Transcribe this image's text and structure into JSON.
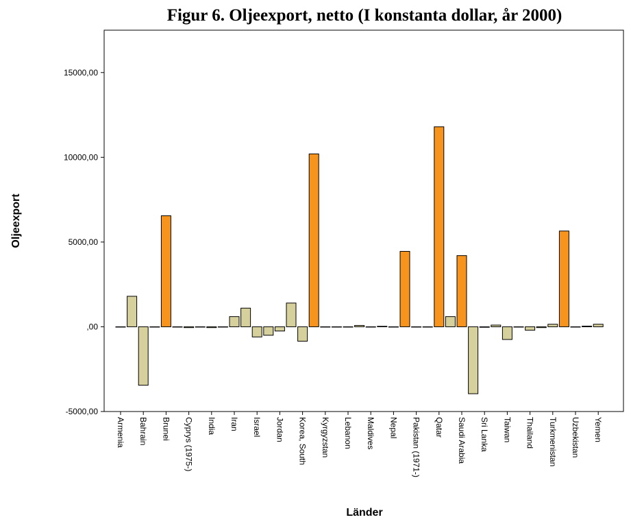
{
  "chart_data": {
    "type": "bar",
    "title": "Figur 6. Oljeexport, netto (I konstanta dollar, år 2000)",
    "x_label": "Länder",
    "y_label": "Oljeexport",
    "categories": [
      "Armenia",
      null,
      "Bahrain",
      null,
      "Brunei",
      null,
      "Cyprys (1975-)",
      null,
      "India",
      null,
      "Iran",
      null,
      "Israel",
      null,
      "Jordan",
      null,
      "Korea, South",
      null,
      "Kyrgyzstan",
      null,
      "Lebanon",
      null,
      "Maldives",
      null,
      "Nepal",
      null,
      "Pakistan (1971-)",
      null,
      "Qatar",
      null,
      "Saudi Arabia",
      null,
      "Sri Lanka",
      null,
      "Taiwan",
      null,
      "Thailand",
      null,
      "Turkmenistan",
      null,
      "Uzbekistan",
      null,
      "Yemen"
    ],
    "values": [
      0,
      1800,
      -3450,
      0,
      6550,
      0,
      -50,
      0,
      -50,
      0,
      600,
      1100,
      -600,
      -500,
      -250,
      1400,
      -850,
      10200,
      0,
      0,
      0,
      80,
      0,
      30,
      0,
      4450,
      0,
      0,
      11800,
      600,
      4200,
      -3950,
      -30,
      100,
      -750,
      0,
      -200,
      -50,
      150,
      5650,
      0,
      40,
      150
    ],
    "colors": [
      "#d6d09c",
      "#d6d09c",
      "#d6d09c",
      "#d6d09c",
      "#f7941d",
      "#d6d09c",
      "#d6d09c",
      "#d6d09c",
      "#d6d09c",
      "#d6d09c",
      "#d6d09c",
      "#d6d09c",
      "#d6d09c",
      "#d6d09c",
      "#d6d09c",
      "#d6d09c",
      "#d6d09c",
      "#f7941d",
      "#d6d09c",
      "#d6d09c",
      "#d6d09c",
      "#d6d09c",
      "#d6d09c",
      "#d6d09c",
      "#d6d09c",
      "#f7941d",
      "#d6d09c",
      "#d6d09c",
      "#f7941d",
      "#d6d09c",
      "#f7941d",
      "#d6d09c",
      "#d6d09c",
      "#d6d09c",
      "#d6d09c",
      "#d6d09c",
      "#d6d09c",
      "#d6d09c",
      "#d6d09c",
      "#f7941d",
      "#d6d09c",
      "#d6d09c",
      "#d6d09c"
    ],
    "ylim": [
      -5000,
      17500
    ],
    "yticks": [
      {
        "value": -5000,
        "label": "-5000,00"
      },
      {
        "value": 0,
        "label": ",00"
      },
      {
        "value": 5000,
        "label": "5000,00"
      },
      {
        "value": 10000,
        "label": "10000,00"
      },
      {
        "value": 15000,
        "label": "15000,00"
      }
    ],
    "grid": false
  }
}
